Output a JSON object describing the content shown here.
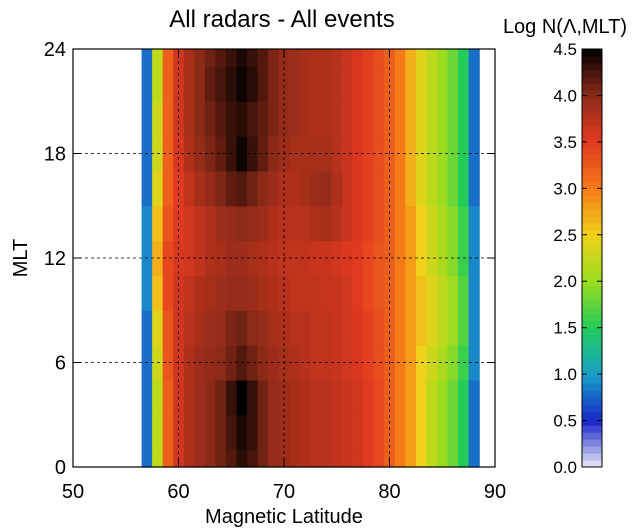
{
  "chart_data": {
    "type": "heatmap",
    "title": "All radars - All events",
    "xlabel": "Magnetic Latitude",
    "ylabel": "MLT",
    "xlim": [
      50,
      90
    ],
    "ylim": [
      0,
      24
    ],
    "xticks": [
      "50",
      "60",
      "70",
      "80",
      "90"
    ],
    "yticks": [
      "0",
      "6",
      "12",
      "18",
      "24"
    ],
    "grid": "dashed at x=60,70,80 and y=6,12,18",
    "colorbar": {
      "label": "Log N(Λ,MLT)",
      "range": [
        0.0,
        4.5
      ],
      "ticks": [
        "0.0",
        "0.5",
        "1.0",
        "1.5",
        "2.0",
        "2.5",
        "3.0",
        "3.5",
        "4.0",
        "4.5"
      ],
      "colormap": [
        "#ebeaf6",
        "#1826c8",
        "#1aa0c8",
        "#23cc5a",
        "#9cdc1e",
        "#f0d21a",
        "#f57a18",
        "#e23a20",
        "#8c2a18",
        "#000000"
      ]
    },
    "x": [
      56,
      57,
      58,
      59,
      60,
      61,
      62,
      63,
      64,
      65,
      66,
      67,
      68,
      69,
      70,
      71,
      72,
      73,
      74,
      75,
      76,
      77,
      78,
      79,
      80,
      81,
      82,
      83,
      84,
      85,
      86,
      87,
      88,
      89
    ],
    "y": [
      0,
      2,
      4,
      6,
      8,
      10,
      12,
      14,
      16,
      18,
      20,
      22,
      24
    ],
    "z": [
      [
        0.0,
        0.8,
        2.2,
        3.2,
        3.6,
        3.8,
        3.9,
        4.0,
        4.1,
        4.2,
        4.35,
        4.25,
        4.1,
        3.95,
        3.9,
        3.85,
        3.8,
        3.75,
        3.75,
        3.7,
        3.65,
        3.6,
        3.5,
        3.4,
        3.2,
        3.0,
        2.8,
        2.5,
        2.2,
        2.0,
        1.8,
        1.5,
        0.8,
        0.0
      ],
      [
        0.0,
        0.8,
        2.2,
        3.2,
        3.6,
        3.8,
        3.9,
        4.0,
        4.1,
        4.25,
        4.4,
        4.3,
        4.1,
        3.95,
        3.9,
        3.85,
        3.8,
        3.75,
        3.75,
        3.7,
        3.65,
        3.6,
        3.5,
        3.4,
        3.2,
        3.0,
        2.8,
        2.5,
        2.2,
        2.0,
        1.8,
        1.5,
        0.8,
        0.0
      ],
      [
        0.0,
        0.8,
        2.2,
        3.2,
        3.6,
        3.8,
        3.9,
        4.0,
        4.1,
        4.3,
        4.5,
        4.3,
        4.1,
        3.95,
        3.9,
        3.85,
        3.8,
        3.75,
        3.75,
        3.7,
        3.65,
        3.6,
        3.5,
        3.4,
        3.2,
        3.0,
        2.8,
        2.5,
        2.2,
        2.0,
        1.8,
        1.5,
        0.8,
        0.0
      ],
      [
        0.0,
        0.8,
        2.3,
        3.3,
        3.6,
        3.8,
        3.9,
        3.95,
        4.0,
        4.1,
        4.2,
        4.1,
        4.0,
        3.9,
        3.85,
        3.8,
        3.75,
        3.7,
        3.7,
        3.65,
        3.6,
        3.55,
        3.45,
        3.35,
        3.2,
        3.0,
        2.8,
        2.5,
        2.3,
        2.1,
        1.9,
        1.6,
        0.9,
        0.0
      ],
      [
        0.0,
        0.8,
        2.4,
        3.3,
        3.6,
        3.75,
        3.85,
        3.9,
        3.95,
        4.05,
        4.1,
        4.0,
        3.95,
        3.85,
        3.8,
        3.75,
        3.75,
        3.7,
        3.7,
        3.65,
        3.6,
        3.55,
        3.45,
        3.35,
        3.2,
        3.0,
        2.8,
        2.6,
        2.4,
        2.2,
        2.0,
        1.7,
        0.9,
        0.0
      ],
      [
        0.0,
        0.9,
        2.6,
        3.4,
        3.6,
        3.7,
        3.8,
        3.85,
        3.9,
        3.95,
        3.95,
        3.9,
        3.85,
        3.8,
        3.75,
        3.7,
        3.7,
        3.7,
        3.65,
        3.65,
        3.6,
        3.5,
        3.4,
        3.3,
        3.2,
        3.0,
        2.8,
        2.6,
        2.4,
        2.2,
        2.0,
        1.7,
        0.9,
        0.0
      ],
      [
        0.0,
        0.9,
        2.7,
        3.4,
        3.55,
        3.6,
        3.7,
        3.8,
        3.85,
        3.9,
        3.9,
        3.85,
        3.8,
        3.75,
        3.7,
        3.7,
        3.7,
        3.65,
        3.65,
        3.6,
        3.55,
        3.5,
        3.4,
        3.3,
        3.2,
        3.0,
        2.8,
        2.5,
        2.3,
        2.1,
        1.9,
        1.6,
        0.9,
        0.0
      ],
      [
        0.0,
        0.9,
        2.6,
        3.3,
        3.5,
        3.6,
        3.7,
        3.8,
        3.9,
        3.95,
        4.0,
        3.95,
        3.9,
        3.8,
        3.75,
        3.75,
        3.75,
        3.8,
        3.85,
        3.75,
        3.65,
        3.55,
        3.45,
        3.35,
        3.2,
        3.0,
        2.8,
        2.5,
        2.3,
        2.1,
        1.9,
        1.6,
        0.9,
        0.0
      ],
      [
        0.0,
        0.8,
        2.4,
        3.2,
        3.5,
        3.7,
        3.85,
        3.95,
        4.05,
        4.15,
        4.2,
        4.1,
        4.0,
        3.9,
        3.8,
        3.8,
        3.85,
        3.9,
        3.95,
        3.8,
        3.65,
        3.55,
        3.45,
        3.35,
        3.2,
        3.0,
        2.7,
        2.4,
        2.2,
        2.0,
        1.8,
        1.5,
        0.8,
        0.0
      ],
      [
        0.0,
        0.8,
        2.3,
        3.2,
        3.55,
        3.8,
        3.95,
        4.05,
        4.15,
        4.3,
        4.45,
        4.3,
        4.15,
        4.0,
        3.9,
        3.85,
        3.85,
        3.85,
        3.85,
        3.75,
        3.65,
        3.55,
        3.45,
        3.35,
        3.2,
        3.0,
        2.7,
        2.4,
        2.2,
        2.0,
        1.8,
        1.5,
        0.8,
        0.0
      ],
      [
        0.0,
        0.8,
        2.3,
        3.2,
        3.6,
        3.85,
        4.0,
        4.1,
        4.2,
        4.3,
        4.35,
        4.25,
        4.15,
        4.05,
        3.95,
        3.9,
        3.85,
        3.8,
        3.8,
        3.75,
        3.65,
        3.55,
        3.45,
        3.35,
        3.2,
        3.0,
        2.7,
        2.4,
        2.2,
        2.0,
        1.8,
        1.5,
        0.8,
        0.0
      ],
      [
        0.0,
        0.8,
        2.2,
        3.2,
        3.6,
        3.85,
        4.0,
        4.15,
        4.25,
        4.35,
        4.45,
        4.35,
        4.2,
        4.05,
        3.95,
        3.9,
        3.85,
        3.8,
        3.8,
        3.75,
        3.65,
        3.55,
        3.45,
        3.35,
        3.2,
        3.0,
        2.7,
        2.4,
        2.2,
        2.0,
        1.8,
        1.5,
        0.8,
        0.0
      ],
      [
        0.0,
        0.8,
        2.2,
        3.2,
        3.6,
        3.85,
        4.0,
        4.1,
        4.2,
        4.3,
        4.4,
        4.3,
        4.2,
        4.05,
        3.95,
        3.9,
        3.85,
        3.8,
        3.8,
        3.75,
        3.65,
        3.55,
        3.45,
        3.35,
        3.2,
        3.0,
        2.7,
        2.4,
        2.2,
        2.0,
        1.8,
        1.5,
        0.8,
        0.0
      ]
    ]
  }
}
